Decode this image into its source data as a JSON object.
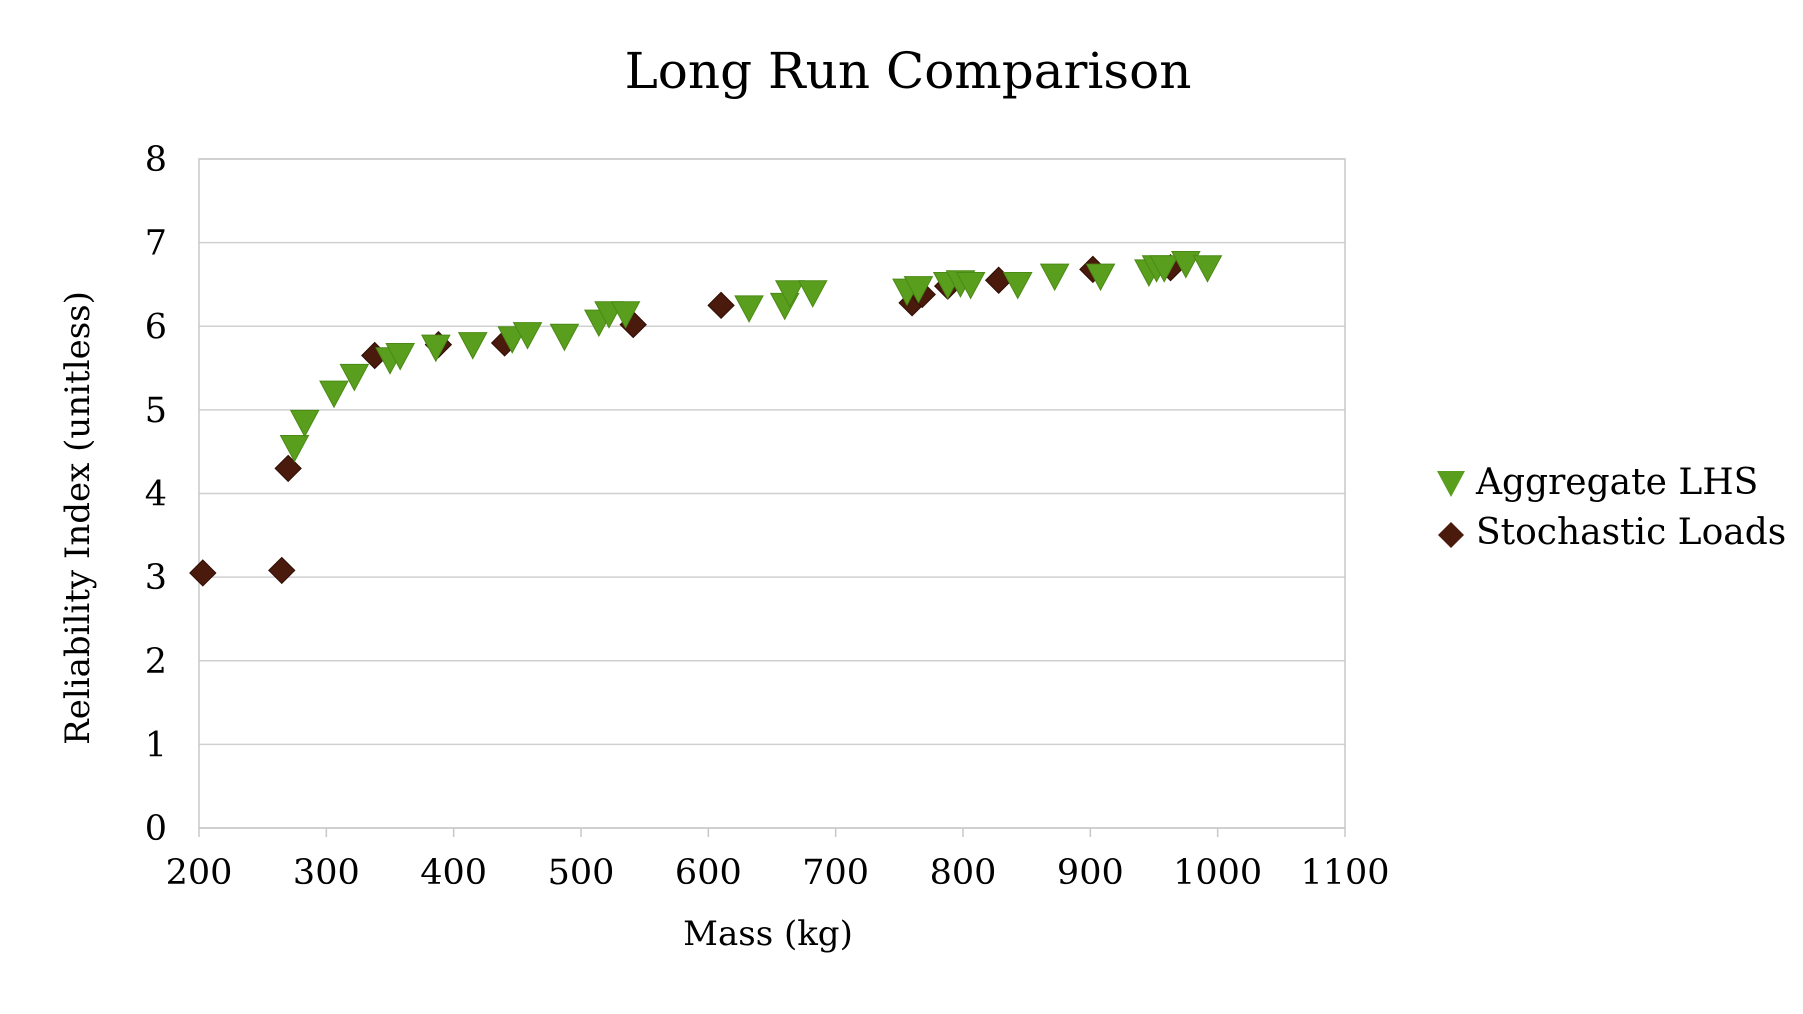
{
  "chart_data": {
    "type": "scatter",
    "title": "Long Run Comparison",
    "xlabel": "Mass (kg)",
    "ylabel": "Reliability Index (unitless)",
    "xlim": [
      200,
      1100
    ],
    "ylim": [
      0,
      8
    ],
    "xticks": [
      200,
      300,
      400,
      500,
      600,
      700,
      800,
      900,
      1000,
      1100
    ],
    "yticks": [
      0,
      1,
      2,
      3,
      4,
      5,
      6,
      7,
      8
    ],
    "grid": "horizontal",
    "legend_position": "right",
    "series": [
      {
        "name": "Aggregate LHS",
        "marker": "down-triangle",
        "color": "#5a9e1e",
        "points": [
          [
            275,
            4.55
          ],
          [
            283,
            4.85
          ],
          [
            306,
            5.2
          ],
          [
            322,
            5.4
          ],
          [
            350,
            5.6
          ],
          [
            358,
            5.65
          ],
          [
            386,
            5.75
          ],
          [
            415,
            5.78
          ],
          [
            446,
            5.85
          ],
          [
            458,
            5.9
          ],
          [
            487,
            5.88
          ],
          [
            514,
            6.05
          ],
          [
            522,
            6.15
          ],
          [
            535,
            6.15
          ],
          [
            632,
            6.22
          ],
          [
            660,
            6.25
          ],
          [
            664,
            6.4
          ],
          [
            682,
            6.4
          ],
          [
            756,
            6.42
          ],
          [
            765,
            6.45
          ],
          [
            788,
            6.5
          ],
          [
            798,
            6.52
          ],
          [
            806,
            6.5
          ],
          [
            843,
            6.5
          ],
          [
            872,
            6.6
          ],
          [
            908,
            6.6
          ],
          [
            946,
            6.65
          ],
          [
            952,
            6.7
          ],
          [
            958,
            6.7
          ],
          [
            975,
            6.75
          ],
          [
            992,
            6.7
          ]
        ]
      },
      {
        "name": "Stochastic Loads",
        "marker": "diamond",
        "color": "#4a1a0c",
        "points": [
          [
            203,
            3.05
          ],
          [
            265,
            3.08
          ],
          [
            270,
            4.3
          ],
          [
            338,
            5.65
          ],
          [
            388,
            5.78
          ],
          [
            440,
            5.8
          ],
          [
            541,
            6.02
          ],
          [
            610,
            6.25
          ],
          [
            760,
            6.28
          ],
          [
            768,
            6.38
          ],
          [
            788,
            6.48
          ],
          [
            828,
            6.55
          ],
          [
            902,
            6.68
          ],
          [
            963,
            6.7
          ]
        ]
      }
    ]
  }
}
